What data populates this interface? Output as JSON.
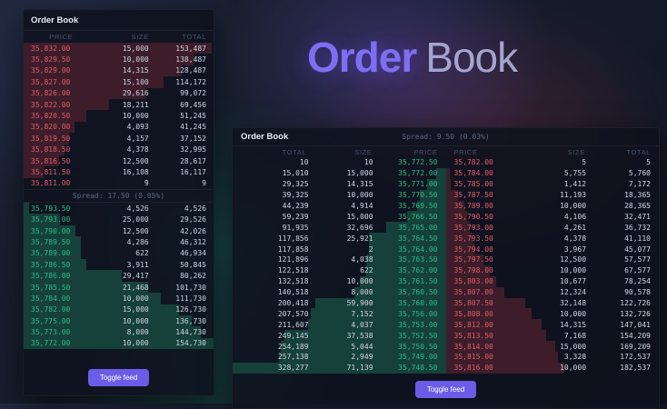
{
  "hero_title": {
    "bold": "Order",
    "light": "Book"
  },
  "colors": {
    "accent_button": "#6b5ce7",
    "ask_text": "#e05a6e",
    "bid_text": "#2abb87",
    "ask_depth_bar": "#3d1d2a",
    "bid_depth_bar": "#16413b",
    "panel_background": "#0e121d"
  },
  "left_panel": {
    "title": "Order Book",
    "columns": [
      "PRICE",
      "SIZE",
      "TOTAL"
    ],
    "spread_label": "Spread: 17.50 (0.05%)",
    "button_label": "Toggle feed",
    "asks": [
      {
        "price": "35,832.00",
        "size": "15,000",
        "total": "153,487"
      },
      {
        "price": "35,829.50",
        "size": "10,000",
        "total": "138,487"
      },
      {
        "price": "35,829.00",
        "size": "14,315",
        "total": "128,487"
      },
      {
        "price": "35,827.00",
        "size": "15,100",
        "total": "114,172"
      },
      {
        "price": "35,826.00",
        "size": "29,616",
        "total": "99,072"
      },
      {
        "price": "35,822.00",
        "size": "18,211",
        "total": "69,456"
      },
      {
        "price": "35,820.50",
        "size": "10,000",
        "total": "51,245"
      },
      {
        "price": "35,820.00",
        "size": "4,093",
        "total": "41,245"
      },
      {
        "price": "35,819.50",
        "size": "4,157",
        "total": "37,152"
      },
      {
        "price": "35,818.50",
        "size": "4,378",
        "total": "32,995"
      },
      {
        "price": "35,816.50",
        "size": "12,500",
        "total": "28,617"
      },
      {
        "price": "35,811.50",
        "size": "16,108",
        "total": "16,117"
      },
      {
        "price": "35,811.00",
        "size": "9",
        "total": "9"
      }
    ],
    "bids": [
      {
        "price": "35,793.50",
        "size": "4,526",
        "total": "4,526"
      },
      {
        "price": "35,793.00",
        "size": "25,000",
        "total": "29,526"
      },
      {
        "price": "35,790.00",
        "size": "12,500",
        "total": "42,026"
      },
      {
        "price": "35,789.50",
        "size": "4,286",
        "total": "46,312"
      },
      {
        "price": "35,789.00",
        "size": "622",
        "total": "46,934"
      },
      {
        "price": "35,786.50",
        "size": "3,911",
        "total": "50,845"
      },
      {
        "price": "35,786.00",
        "size": "29,417",
        "total": "80,262"
      },
      {
        "price": "35,785.50",
        "size": "21,468",
        "total": "101,730"
      },
      {
        "price": "35,784.00",
        "size": "10,000",
        "total": "111,730"
      },
      {
        "price": "35,782.00",
        "size": "15,000",
        "total": "126,730"
      },
      {
        "price": "35,775.00",
        "size": "10,000",
        "total": "136,730"
      },
      {
        "price": "35,773.00",
        "size": "8,000",
        "total": "144,730"
      },
      {
        "price": "35,772.00",
        "size": "10,000",
        "total": "154,730"
      }
    ]
  },
  "right_panel": {
    "title": "Order Book",
    "spread_label": "Spread: 9.50 (0.03%)",
    "bid_columns": [
      "TOTAL",
      "SIZE",
      "PRICE"
    ],
    "ask_columns": [
      "PRICE",
      "SIZE",
      "TOTAL"
    ],
    "button_label": "Toggle feed",
    "bids": [
      {
        "price": "35,772.50",
        "size": "10",
        "total": "10"
      },
      {
        "price": "35,772.00",
        "size": "15,000",
        "total": "15,010"
      },
      {
        "price": "35,771.00",
        "size": "14,315",
        "total": "29,325"
      },
      {
        "price": "35,770.50",
        "size": "10,000",
        "total": "39,325"
      },
      {
        "price": "35,769.50",
        "size": "4,914",
        "total": "44,239"
      },
      {
        "price": "35,766.50",
        "size": "15,000",
        "total": "59,239"
      },
      {
        "price": "35,765.00",
        "size": "32,696",
        "total": "91,935"
      },
      {
        "price": "35,764.50",
        "size": "25,921",
        "total": "117,856"
      },
      {
        "price": "35,764.00",
        "size": "2",
        "total": "117,858"
      },
      {
        "price": "35,763.50",
        "size": "4,038",
        "total": "121,896"
      },
      {
        "price": "35,762.00",
        "size": "622",
        "total": "122,518"
      },
      {
        "price": "35,761.50",
        "size": "10,000",
        "total": "132,518"
      },
      {
        "price": "35,760.50",
        "size": "8,000",
        "total": "140,518"
      },
      {
        "price": "35,760.00",
        "size": "59,900",
        "total": "200,418"
      },
      {
        "price": "35,756.00",
        "size": "7,152",
        "total": "207,570"
      },
      {
        "price": "35,753.00",
        "size": "4,037",
        "total": "211,607"
      },
      {
        "price": "35,752.50",
        "size": "37,538",
        "total": "249,145"
      },
      {
        "price": "35,750.50",
        "size": "5,044",
        "total": "254,189"
      },
      {
        "price": "35,749.00",
        "size": "2,949",
        "total": "257,138"
      },
      {
        "price": "35,748.50",
        "size": "71,139",
        "total": "328,277"
      }
    ],
    "asks": [
      {
        "price": "35,782.00",
        "size": "5",
        "total": "5"
      },
      {
        "price": "35,784.00",
        "size": "5,755",
        "total": "5,760"
      },
      {
        "price": "35,785.00",
        "size": "1,412",
        "total": "7,172"
      },
      {
        "price": "35,787.50",
        "size": "11,193",
        "total": "18,365"
      },
      {
        "price": "35,789.00",
        "size": "10,000",
        "total": "28,365"
      },
      {
        "price": "35,790.50",
        "size": "4,106",
        "total": "32,471"
      },
      {
        "price": "35,793.00",
        "size": "4,261",
        "total": "36,732"
      },
      {
        "price": "35,793.50",
        "size": "4,378",
        "total": "41,110"
      },
      {
        "price": "35,794.00",
        "size": "3,967",
        "total": "45,077"
      },
      {
        "price": "35,797.50",
        "size": "12,500",
        "total": "57,577"
      },
      {
        "price": "35,798.00",
        "size": "10,000",
        "total": "67,577"
      },
      {
        "price": "35,803.00",
        "size": "10,677",
        "total": "78,254"
      },
      {
        "price": "35,807.00",
        "size": "12,324",
        "total": "90,578"
      },
      {
        "price": "35,807.50",
        "size": "32,148",
        "total": "122,726"
      },
      {
        "price": "35,808.00",
        "size": "10,000",
        "total": "132,726"
      },
      {
        "price": "35,812.00",
        "size": "14,315",
        "total": "147,041"
      },
      {
        "price": "35,813.50",
        "size": "7,168",
        "total": "154,209"
      },
      {
        "price": "35,814.00",
        "size": "15,000",
        "total": "169,209"
      },
      {
        "price": "35,815.00",
        "size": "3,328",
        "total": "172,537"
      },
      {
        "price": "35,816.00",
        "size": "10,000",
        "total": "182,537"
      }
    ]
  }
}
